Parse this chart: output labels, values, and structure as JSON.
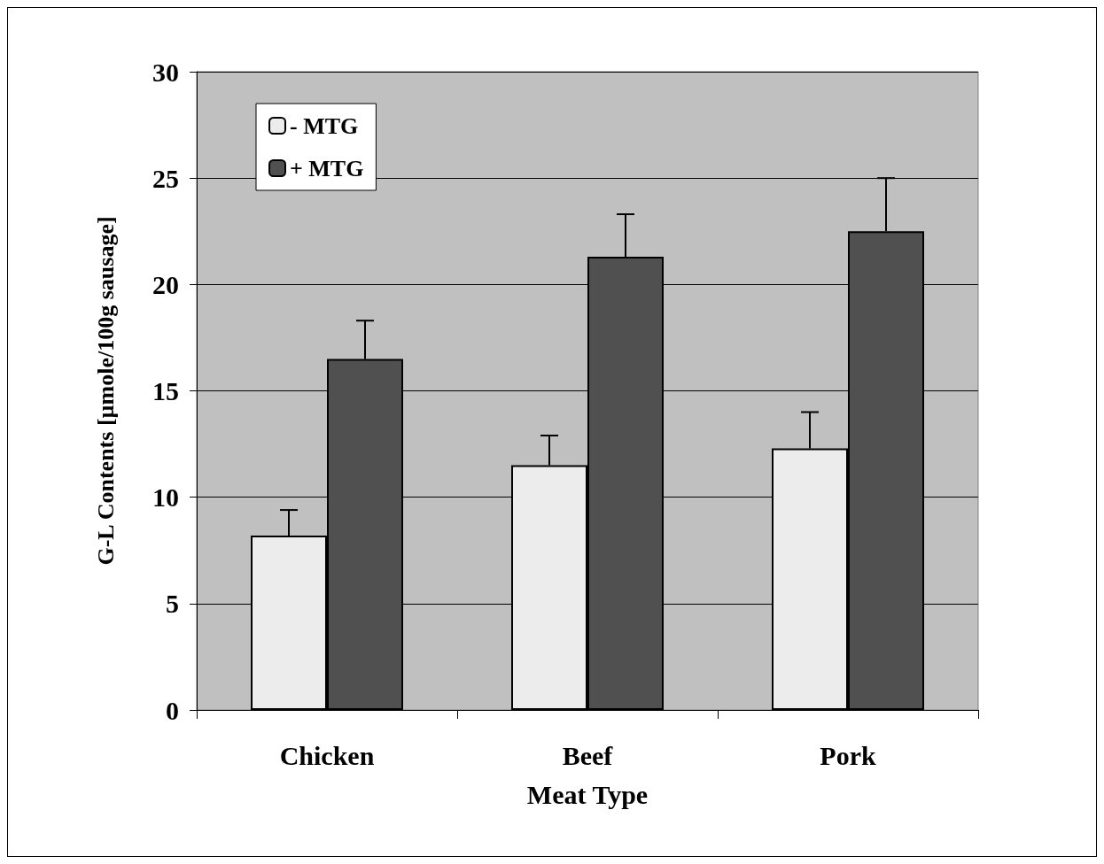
{
  "chart_data": {
    "type": "bar",
    "xlabel": "Meat Type",
    "ylabel": "G-L Contents [µmole/100g sausage]",
    "categories": [
      "Chicken",
      "Beef",
      "Pork"
    ],
    "series": [
      {
        "name": "- MTG",
        "color": "#ececec",
        "values": [
          8.2,
          11.5,
          12.3
        ],
        "errors": [
          [
            8.2,
            9.4
          ],
          [
            11.5,
            12.9
          ],
          [
            12.3,
            14.0
          ]
        ]
      },
      {
        "name": "+ MTG",
        "color": "#505050",
        "values": [
          16.5,
          21.3,
          22.5
        ],
        "errors": [
          [
            16.5,
            18.3
          ],
          [
            21.3,
            23.3
          ],
          [
            22.5,
            25.0
          ]
        ]
      }
    ],
    "ylim": [
      0,
      30
    ],
    "yticks": [
      0,
      5,
      10,
      15,
      20,
      25,
      30
    ],
    "grid": "y",
    "legend": "top left"
  }
}
